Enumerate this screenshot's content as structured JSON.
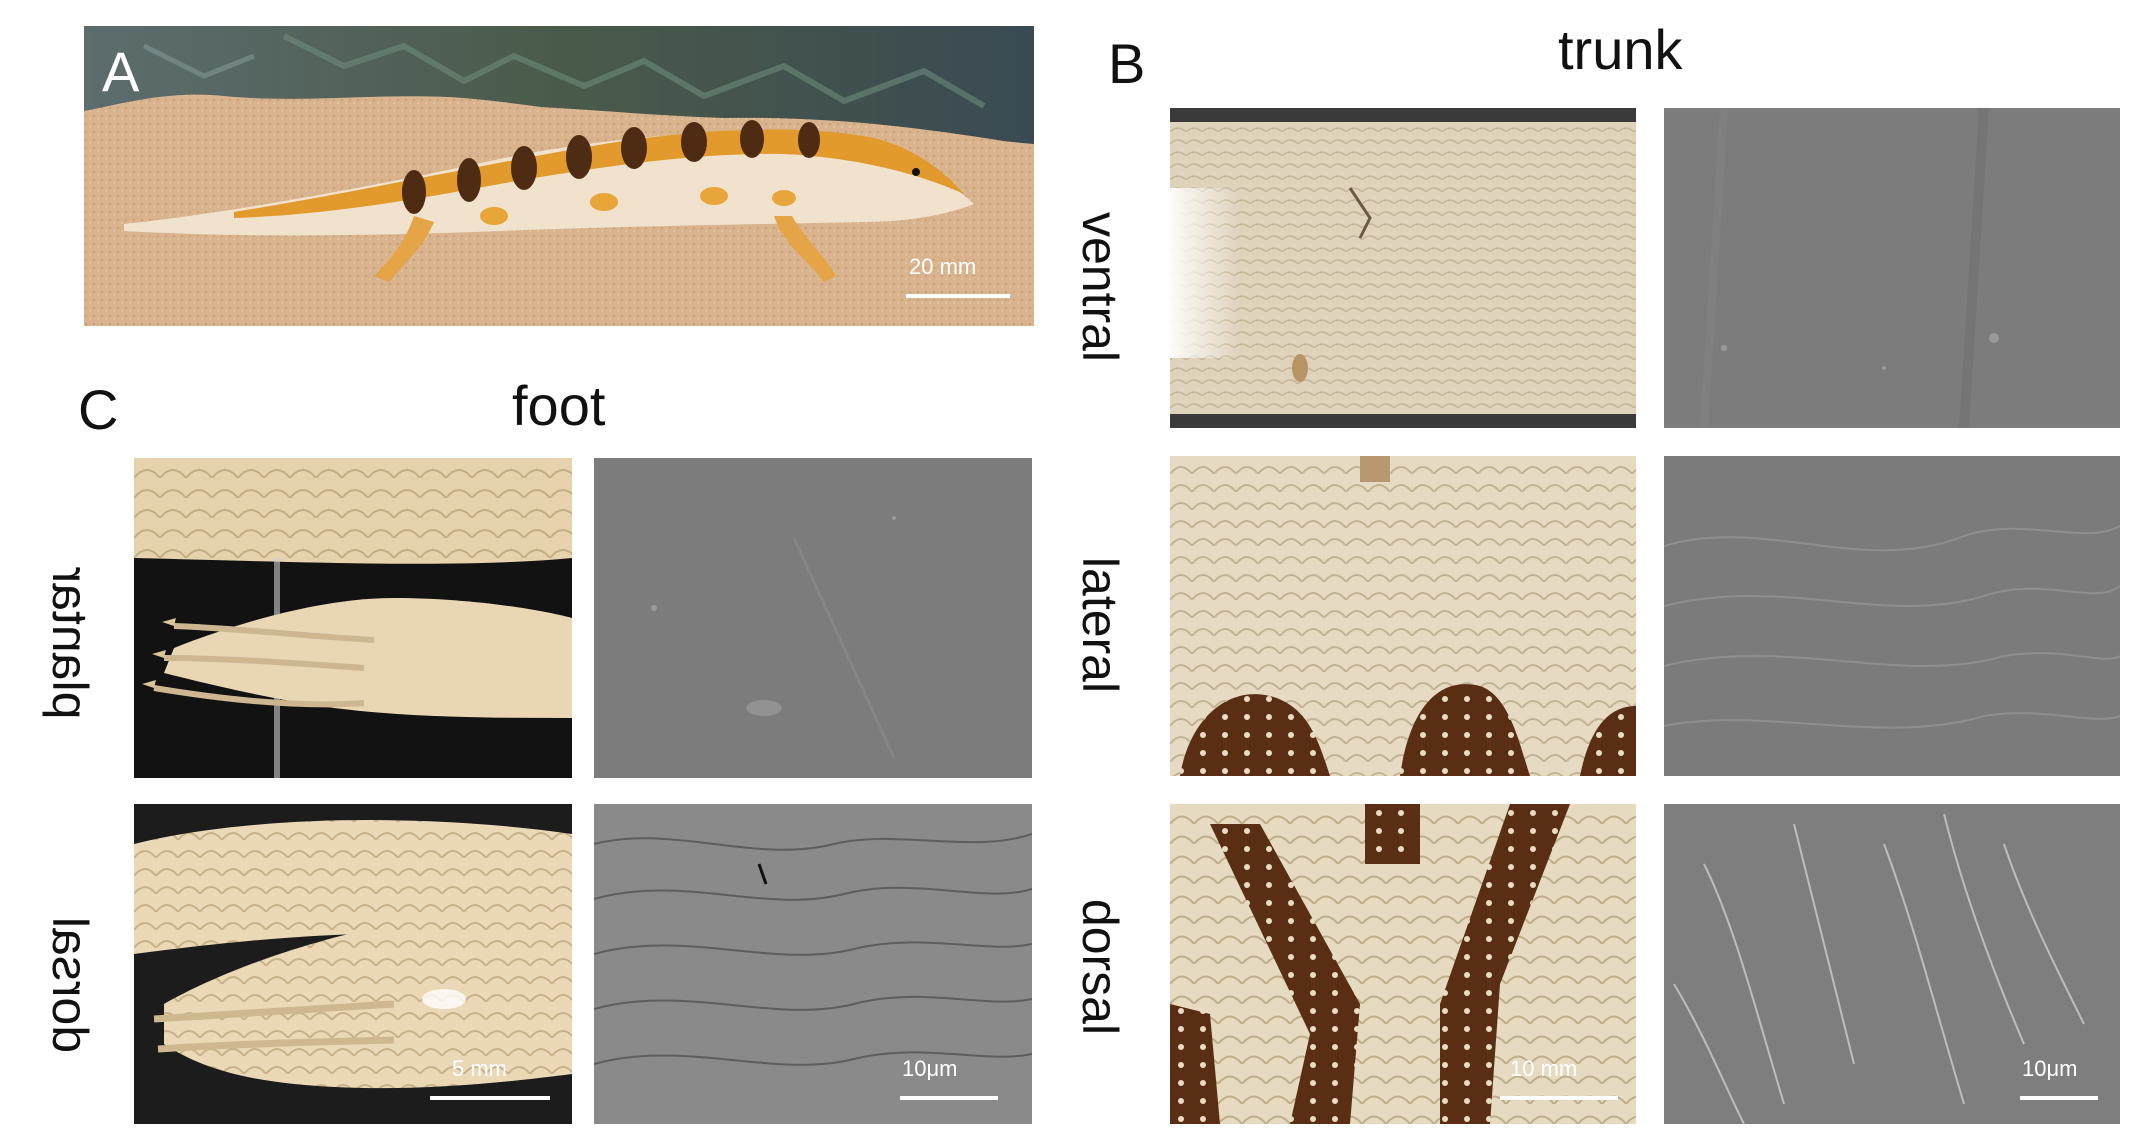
{
  "panels": {
    "a": {
      "letter": "A",
      "scale": "20 mm"
    },
    "b": {
      "letter": "B",
      "title": "trunk",
      "rows": [
        {
          "label": "ventral"
        },
        {
          "label": "lateral"
        },
        {
          "label": "dorsal",
          "photo_scale": "10 mm",
          "sem_scale": "10μm"
        }
      ]
    },
    "c": {
      "letter": "C",
      "title": "foot",
      "rows": [
        {
          "label": "plantar"
        },
        {
          "label": "dorsal",
          "photo_scale": "5 mm",
          "sem_scale": "10μm"
        }
      ]
    }
  },
  "colors": {
    "sand": "#d9b48c",
    "lizard_orange": "#e29a2c",
    "band_brown": "#5a3418",
    "cream_skin": "#e8dcc2",
    "sem_gray": "#7e7e7e"
  }
}
